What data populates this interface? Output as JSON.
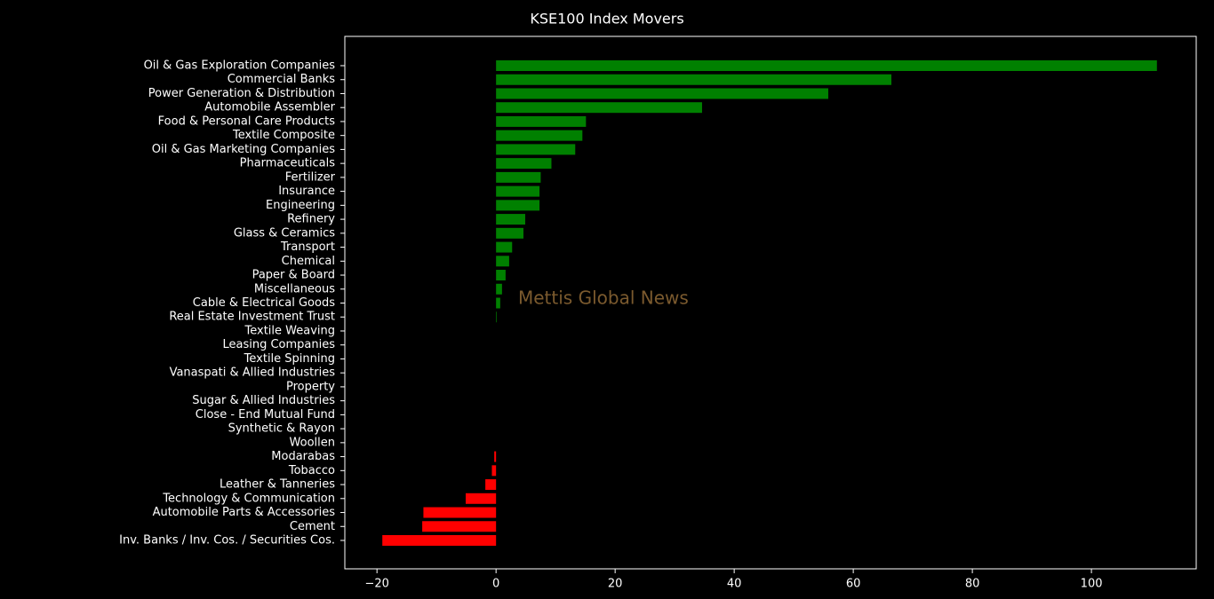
{
  "chart_data": {
    "type": "barh",
    "title": "KSE100 Index Movers",
    "annotation": "Mettis Global News",
    "annotation_color": "#7b5a2e",
    "categories": [
      "Oil & Gas Exploration Companies",
      "Commercial Banks",
      "Power Generation & Distribution",
      "Automobile Assembler",
      "Food & Personal Care Products",
      "Textile Composite",
      "Oil & Gas Marketing Companies",
      "Pharmaceuticals",
      "Fertilizer",
      "Insurance",
      "Engineering",
      "Refinery",
      "Glass & Ceramics",
      "Transport",
      "Chemical",
      "Paper & Board",
      "Miscellaneous",
      "Cable & Electrical Goods",
      "Real Estate Investment Trust",
      "Textile Weaving",
      "Leasing Companies",
      "Textile Spinning",
      "Vanaspati & Allied Industries",
      "Property",
      "Sugar & Allied Industries",
      "Close - End Mutual Fund",
      "Synthetic & Rayon",
      "Woollen",
      "Modarabas",
      "Tobacco",
      "Leather & Tanneries",
      "Technology & Communication",
      "Automobile Parts & Accessories",
      "Cement",
      "Inv. Banks / Inv. Cos. / Securities Cos."
    ],
    "values": [
      111.0,
      66.4,
      55.8,
      34.6,
      15.1,
      14.5,
      13.3,
      9.3,
      7.5,
      7.3,
      7.3,
      4.9,
      4.6,
      2.7,
      2.2,
      1.6,
      1.0,
      0.7,
      0.1,
      0,
      0,
      0,
      0,
      0,
      0,
      0,
      0,
      0,
      -0.3,
      -0.7,
      -1.8,
      -5.1,
      -12.2,
      -12.4,
      -19.1
    ],
    "positive_color": "#008000",
    "negative_color": "#ff0000",
    "xlim": [
      -25.4,
      117.6
    ],
    "xticks": [
      {
        "value": -20,
        "label": "−20"
      },
      0,
      20,
      40,
      60,
      80,
      100
    ]
  }
}
